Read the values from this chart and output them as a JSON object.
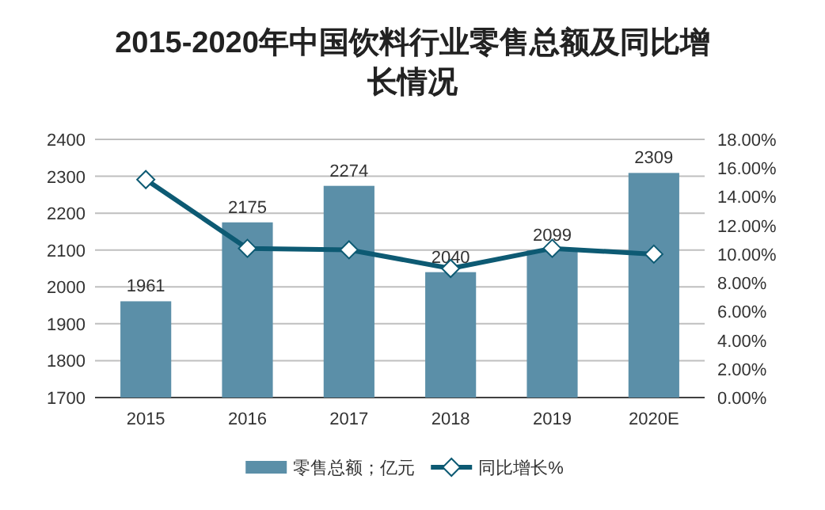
{
  "chart_data": {
    "type": "bar",
    "title": "2015-2020年中国饮料行业零售总额及同比增长情况",
    "categories": [
      "2015",
      "2016",
      "2017",
      "2018",
      "2019",
      "2020E"
    ],
    "series": [
      {
        "name": "零售总额；亿元",
        "color": "#5b8fa8",
        "values": [
          1961,
          2175,
          2274,
          2040,
          2099,
          2309
        ],
        "value_labels": [
          "1961",
          "2175",
          "2274",
          "2040",
          "2099",
          "2309"
        ]
      },
      {
        "name": "同比增长%",
        "type": "line",
        "axis": "y2",
        "color": "#0d5a73",
        "marker": "diamond",
        "values": [
          15.2,
          10.4,
          10.3,
          9.0,
          10.4,
          10.0
        ]
      }
    ],
    "ylim": [
      1700,
      2400
    ],
    "yticks": [
      1700,
      1800,
      1900,
      2000,
      2100,
      2200,
      2300,
      2400
    ],
    "y2lim": [
      0,
      18
    ],
    "y2ticks": [
      {
        "value": 0,
        "label": "0.00%"
      },
      {
        "value": 2,
        "label": "2.00%"
      },
      {
        "value": 4,
        "label": "4.00%"
      },
      {
        "value": 6,
        "label": "6.00%"
      },
      {
        "value": 8,
        "label": "8.00%"
      },
      {
        "value": 10,
        "label": "10.00%"
      },
      {
        "value": 12,
        "label": "12.00%"
      },
      {
        "value": 14,
        "label": "14.00%"
      },
      {
        "value": 16,
        "label": "16.00%"
      },
      {
        "value": 18,
        "label": "18.00%"
      }
    ],
    "grid": "y",
    "legend": "bottom"
  }
}
